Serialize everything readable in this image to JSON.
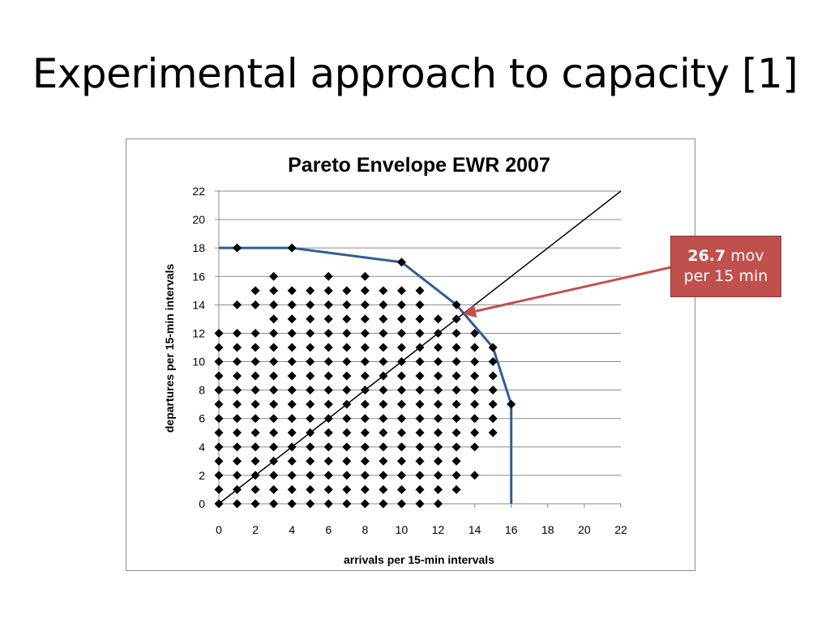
{
  "slide": {
    "title": "Experimental approach to capacity [1]"
  },
  "callout": {
    "value": "26.7",
    "unit_line1": " mov",
    "unit_line2": "per 15 min"
  },
  "colors": {
    "envelope": "#2e5c94",
    "diagonal": "#000000",
    "callout_bg": "#c0504d",
    "arrow": "#c0504d"
  },
  "chart_data": {
    "type": "scatter",
    "title": "Pareto Envelope EWR 2007",
    "xlabel": "arrivals per 15-min intervals",
    "ylabel": "departures per 15-min intervals",
    "xlim": [
      0,
      22
    ],
    "ylim": [
      0,
      22
    ],
    "xticks": [
      0,
      2,
      4,
      6,
      8,
      10,
      12,
      14,
      16,
      18,
      20,
      22
    ],
    "yticks": [
      0,
      2,
      4,
      6,
      8,
      10,
      12,
      14,
      16,
      18,
      20,
      22
    ],
    "grid": "horizontal",
    "points_by_row": [
      {
        "y": 0,
        "x": [
          0,
          1,
          2,
          3,
          4,
          5,
          6,
          7,
          8,
          9,
          10,
          11,
          12
        ]
      },
      {
        "y": 1,
        "x": [
          0,
          1,
          2,
          3,
          4,
          5,
          6,
          7,
          8,
          9,
          10,
          11,
          12,
          13
        ]
      },
      {
        "y": 2,
        "x": [
          0,
          1,
          2,
          3,
          4,
          5,
          6,
          7,
          8,
          9,
          10,
          11,
          12,
          13,
          14
        ]
      },
      {
        "y": 3,
        "x": [
          0,
          1,
          2,
          3,
          4,
          5,
          6,
          7,
          8,
          9,
          10,
          11,
          12,
          13
        ]
      },
      {
        "y": 4,
        "x": [
          0,
          1,
          2,
          3,
          4,
          5,
          6,
          7,
          8,
          9,
          10,
          11,
          12,
          13,
          14
        ]
      },
      {
        "y": 5,
        "x": [
          0,
          1,
          2,
          3,
          4,
          5,
          6,
          7,
          8,
          9,
          10,
          11,
          12,
          13,
          14,
          15
        ]
      },
      {
        "y": 6,
        "x": [
          0,
          1,
          2,
          3,
          4,
          5,
          6,
          7,
          8,
          9,
          10,
          11,
          12,
          13,
          14,
          15
        ]
      },
      {
        "y": 7,
        "x": [
          0,
          1,
          2,
          3,
          4,
          5,
          6,
          7,
          8,
          9,
          10,
          11,
          12,
          13,
          14,
          15,
          16
        ]
      },
      {
        "y": 8,
        "x": [
          0,
          1,
          2,
          3,
          4,
          5,
          6,
          7,
          8,
          9,
          10,
          11,
          12,
          13,
          14,
          15
        ]
      },
      {
        "y": 9,
        "x": [
          0,
          1,
          2,
          3,
          4,
          5,
          6,
          7,
          8,
          9,
          10,
          11,
          12,
          13,
          14,
          15
        ]
      },
      {
        "y": 10,
        "x": [
          0,
          1,
          2,
          3,
          4,
          5,
          6,
          7,
          8,
          9,
          10,
          11,
          12,
          13,
          14,
          15
        ]
      },
      {
        "y": 11,
        "x": [
          0,
          1,
          2,
          3,
          4,
          5,
          6,
          7,
          8,
          9,
          10,
          11,
          12,
          13,
          14,
          15
        ]
      },
      {
        "y": 12,
        "x": [
          0,
          1,
          2,
          3,
          4,
          5,
          6,
          7,
          8,
          9,
          10,
          11,
          12,
          13,
          14
        ]
      },
      {
        "y": 13,
        "x": [
          3,
          4,
          5,
          6,
          7,
          8,
          9,
          10,
          11,
          12,
          13
        ]
      },
      {
        "y": 14,
        "x": [
          1,
          2,
          3,
          4,
          5,
          6,
          7,
          8,
          9,
          10,
          11,
          13
        ]
      },
      {
        "y": 15,
        "x": [
          2,
          3,
          4,
          5,
          6,
          7,
          8,
          9,
          10,
          11
        ]
      },
      {
        "y": 16,
        "x": [
          3,
          6,
          8
        ]
      },
      {
        "y": 17,
        "x": [
          10
        ]
      },
      {
        "y": 18,
        "x": [
          1,
          4
        ]
      }
    ],
    "series": [
      {
        "type": "line",
        "x": [
          0,
          4,
          10,
          13,
          15,
          16,
          16
        ],
        "y": [
          18,
          18,
          17,
          14,
          11,
          7,
          0
        ]
      },
      {
        "type": "line",
        "x": [
          0,
          22
        ],
        "y": [
          0,
          22
        ]
      }
    ],
    "annotation": {
      "text": "26.7 mov per 15 min",
      "x": 13.35,
      "y": 13.35
    }
  }
}
